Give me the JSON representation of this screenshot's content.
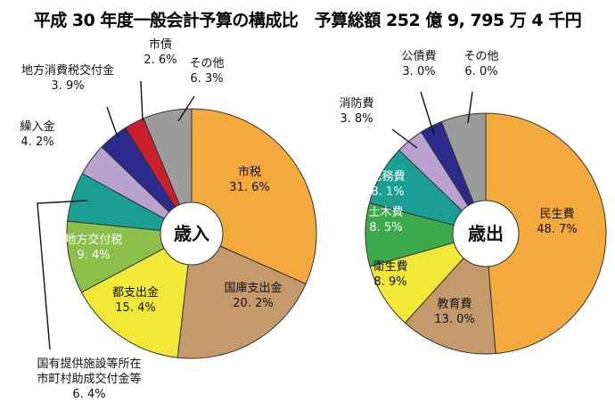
{
  "title": "平成 30 年度一般会計予算の構成比　予算総額 252 億 9, 795 万 4 千円",
  "chart_data": [
    {
      "type": "pie",
      "center_label": "歳入",
      "categories": [
        "市税",
        "国庫支出金",
        "都支出金",
        "地方交付税",
        "国有提供施設等所在市町村助成交付金等",
        "繰入金",
        "地方消費税交付金",
        "市債",
        "その他"
      ],
      "values": [
        31.6,
        20.2,
        15.4,
        9.4,
        6.4,
        4.2,
        3.9,
        2.6,
        6.3
      ],
      "value_labels": [
        "31. 6%",
        "20. 2%",
        "15. 4%",
        "9. 4%",
        "6. 4%",
        "4. 2%",
        "3. 9%",
        "2. 6%",
        "6. 3%"
      ],
      "colors": [
        "#f3a93c",
        "#c4996b",
        "#f2e838",
        "#8dc04b",
        "#1b9f95",
        "#b9a2d0",
        "#2b2b8e",
        "#c9202c",
        "#9c9c9c"
      ]
    },
    {
      "type": "pie",
      "center_label": "歳出",
      "categories": [
        "民生費",
        "教育費",
        "衛生費",
        "土木費",
        "総務費",
        "消防費",
        "公債費",
        "その他"
      ],
      "values": [
        48.7,
        13.0,
        8.9,
        8.5,
        8.1,
        3.8,
        3.0,
        6.0
      ],
      "value_labels": [
        "48. 7%",
        "13. 0%",
        "8. 9%",
        "8. 5%",
        "8. 1%",
        "3. 8%",
        "3. 0%",
        "6. 0%"
      ],
      "colors": [
        "#f3a93c",
        "#c4996b",
        "#f2e838",
        "#3aaa4c",
        "#1b9f95",
        "#b9a2d0",
        "#2b2b8e",
        "#9c9c9c"
      ]
    }
  ]
}
